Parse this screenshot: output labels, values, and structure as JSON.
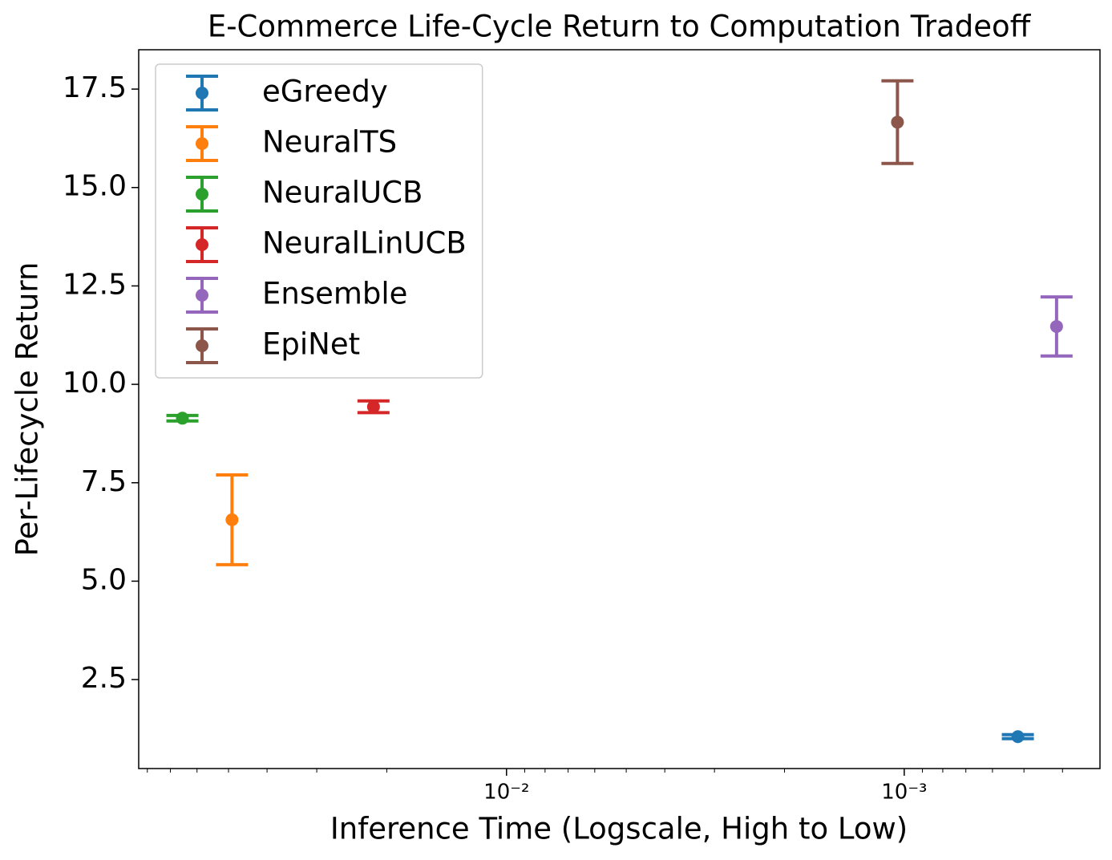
{
  "chart_data": {
    "type": "errorbar",
    "title": "E-Commerce Life-Cycle Return to Computation Tradeoff",
    "x_label": "Inference Time (Logscale, High to Low)",
    "y_label": "Per-Lifecycle Return",
    "x_scale": "log",
    "x_inverted": true,
    "xlim": [
      0.0841,
      0.000322
    ],
    "xticks": [
      {
        "value": 0.01,
        "label": "10⁻²"
      },
      {
        "value": 0.001,
        "label": "10⁻³"
      }
    ],
    "xminorticks": [
      0.08,
      0.07,
      0.06,
      0.05,
      0.04,
      0.03,
      0.02,
      0.009,
      0.008,
      0.007,
      0.006,
      0.005,
      0.004,
      0.003,
      0.002,
      0.0009,
      0.0008,
      0.0007,
      0.0006,
      0.0005,
      0.0004
    ],
    "ylim": [
      0.24,
      18.5
    ],
    "yticks": [
      2.5,
      {
        "value": 5,
        "label": "5.0"
      },
      7.5,
      {
        "value": 10,
        "label": "10.0"
      },
      12.5,
      {
        "value": 15,
        "label": "15.0"
      },
      17.5
    ],
    "legend": "upper left",
    "series": [
      {
        "name": "eGreedy",
        "color": "#1f77b4",
        "x": [
          0.000518
        ],
        "values": [
          1.05
        ],
        "errors": [
          0.05
        ]
      },
      {
        "name": "NeuralTS",
        "color": "#ff7f0e",
        "x": [
          0.049
        ],
        "values": [
          6.56
        ],
        "errors": [
          1.14
        ]
      },
      {
        "name": "NeuralUCB",
        "color": "#2ca02c",
        "x": [
          0.0653
        ],
        "values": [
          9.14
        ],
        "errors": [
          0.07
        ]
      },
      {
        "name": "NeuralLinUCB",
        "color": "#d62728",
        "x": [
          0.0216
        ],
        "values": [
          9.43
        ],
        "errors": [
          0.15
        ]
      },
      {
        "name": "Ensemble",
        "color": "#9467bd",
        "x": [
          0.000414
        ],
        "values": [
          11.47
        ],
        "errors": [
          0.75
        ]
      },
      {
        "name": "EpiNet",
        "color": "#8c564b",
        "x": [
          0.00104
        ],
        "values": [
          16.66
        ],
        "errors": [
          1.05
        ]
      }
    ]
  }
}
